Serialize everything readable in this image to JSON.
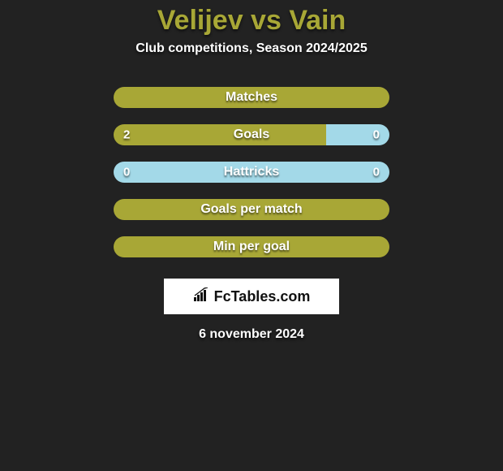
{
  "title": "Velijev vs Vain",
  "subtitle": "Club competitions, Season 2024/2025",
  "datestamp": "6 november 2024",
  "footer_logo_text": "FcTables.com",
  "colors": {
    "background": "#222222",
    "title": "#a8a736",
    "text": "#ffffff",
    "left_fill": "#a8a736",
    "right_fill": "#a3d9e8",
    "oval_left": "#e8e8e8",
    "oval_right": "#e8e8e8",
    "logo_bg": "#ffffff"
  },
  "stats": [
    {
      "label": "Matches",
      "left_value": null,
      "right_value": null,
      "left_pct": 100,
      "right_pct": 0,
      "show_oval_left": true,
      "show_oval_right": true
    },
    {
      "label": "Goals",
      "left_value": "2",
      "right_value": "0",
      "left_pct": 77,
      "right_pct": 23,
      "show_oval_left": true,
      "show_oval_right": true
    },
    {
      "label": "Hattricks",
      "left_value": "0",
      "right_value": "0",
      "left_pct": 0,
      "right_pct": 100,
      "show_oval_left": false,
      "show_oval_right": false
    },
    {
      "label": "Goals per match",
      "left_value": null,
      "right_value": null,
      "left_pct": 100,
      "right_pct": 0,
      "show_oval_left": false,
      "show_oval_right": false
    },
    {
      "label": "Min per goal",
      "left_value": null,
      "right_value": null,
      "left_pct": 100,
      "right_pct": 0,
      "show_oval_left": false,
      "show_oval_right": false
    }
  ]
}
